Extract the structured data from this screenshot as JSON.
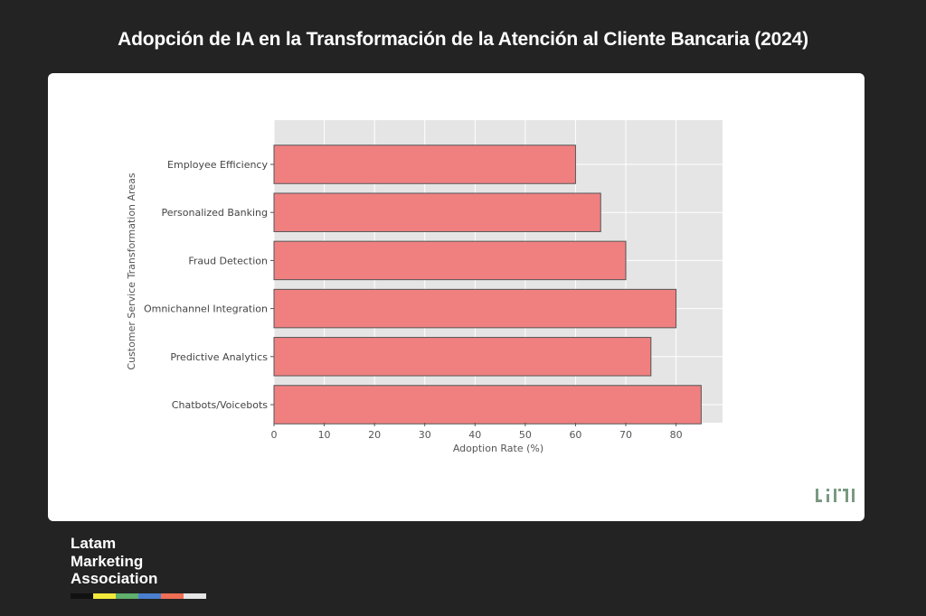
{
  "page": {
    "title": "Adopción de IA en la Transformación de la Atención al Cliente Bancaria (2024)"
  },
  "chart_data": {
    "type": "bar",
    "orientation": "horizontal",
    "categories": [
      "Employee Efficiency",
      "Personalized Banking",
      "Fraud Detection",
      "Omnichannel Integration",
      "Predictive Analytics",
      "Chatbots/Voicebots"
    ],
    "values": [
      60,
      65,
      70,
      80,
      75,
      85
    ],
    "xlabel": "Adoption Rate (%)",
    "ylabel": "Customer Service Transformation Areas",
    "xticks": [
      0,
      10,
      20,
      30,
      40,
      50,
      60,
      70,
      80
    ],
    "xlim": [
      0,
      89.25
    ],
    "grid": true,
    "bar_color": "#f08080",
    "bar_edge_color": "#555555",
    "plot_background": "#e5e5e5"
  },
  "logo": {
    "icon": "lmi-logo-icon",
    "color": "#7a9a82"
  },
  "brand": {
    "lines": [
      "Latam",
      "Marketing",
      "Association"
    ],
    "stripe_colors": [
      "#111111",
      "#f2ea3a",
      "#5fb06c",
      "#4a7fd0",
      "#ef6f55",
      "#e6e6e6"
    ]
  }
}
